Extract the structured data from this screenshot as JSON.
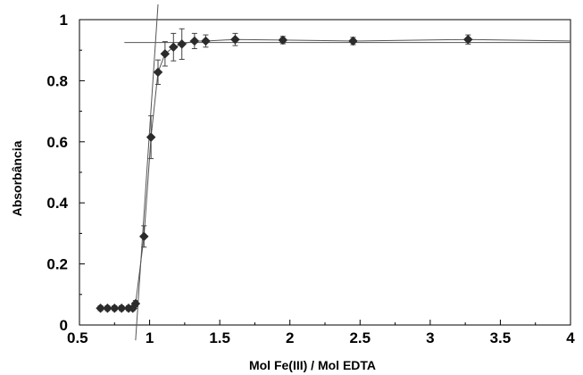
{
  "chart_data": {
    "type": "scatter",
    "title": "",
    "xlabel": "Mol Fe(III) / Mol EDTA",
    "ylabel": "Absorbância",
    "xlim": [
      0.5,
      4
    ],
    "ylim": [
      0,
      1
    ],
    "x_ticks": [
      "0.5",
      "1",
      "1.5",
      "2",
      "2.5",
      "3",
      "3.5",
      "4"
    ],
    "y_ticks": [
      "0",
      "0.2",
      "0.4",
      "0.6",
      "0.8",
      "1"
    ],
    "grid": false,
    "legend": "none",
    "marker_color": "#2b2b2b",
    "series": [
      {
        "x": [
          0.65,
          0.7,
          0.75,
          0.8,
          0.85,
          0.88,
          0.9,
          0.96,
          1.01,
          1.06,
          1.11,
          1.17,
          1.23,
          1.32,
          1.4,
          1.61,
          1.95,
          2.45,
          3.27
        ],
        "y": [
          0.055,
          0.055,
          0.055,
          0.055,
          0.055,
          0.055,
          0.07,
          0.29,
          0.615,
          0.828,
          0.888,
          0.91,
          0.92,
          0.93,
          0.93,
          0.935,
          0.933,
          0.93,
          0.935
        ],
        "error": [
          0.008,
          0.008,
          0.008,
          0.008,
          0.008,
          0.008,
          0.01,
          0.035,
          0.07,
          0.04,
          0.04,
          0.045,
          0.05,
          0.025,
          0.02,
          0.02,
          0.012,
          0.012,
          0.015
        ]
      }
    ],
    "fit_lines": [
      {
        "x": [
          0.9,
          1.06
        ],
        "y": [
          -0.05,
          1.05
        ]
      },
      {
        "x": [
          0.82,
          4.0
        ],
        "y": [
          0.925,
          0.925
        ]
      }
    ],
    "connector": {
      "x": [
        0.65,
        0.7,
        0.75,
        0.8,
        0.85,
        0.88,
        0.9,
        0.96,
        1.01,
        1.06,
        1.11,
        1.17,
        1.23,
        1.32,
        1.4,
        1.61,
        1.95,
        2.45,
        3.27,
        4.0
      ],
      "y": [
        0.055,
        0.055,
        0.055,
        0.055,
        0.055,
        0.055,
        0.07,
        0.29,
        0.615,
        0.828,
        0.888,
        0.91,
        0.92,
        0.93,
        0.93,
        0.935,
        0.933,
        0.93,
        0.935,
        0.93
      ]
    }
  }
}
